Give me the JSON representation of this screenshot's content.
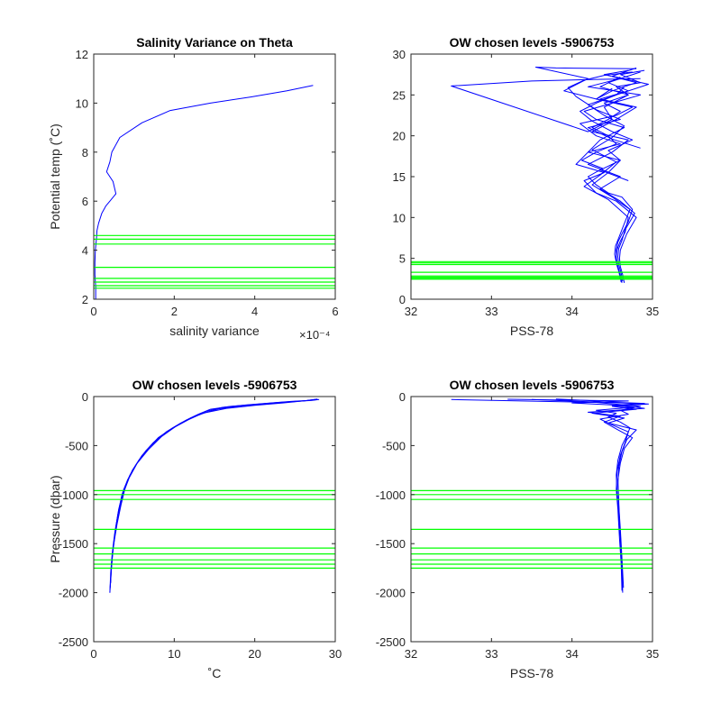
{
  "colors": {
    "profile": "#0000ff",
    "levels": "#00ff00",
    "axis": "#262626"
  },
  "chart_data": [
    {
      "id": "p1",
      "type": "line",
      "title": "Salinity Variance on Theta",
      "xlabel": "salinity variance",
      "ylabel": "Potential temp (˚C)",
      "xlim": [
        0,
        6
      ],
      "ylim": [
        2,
        12
      ],
      "xticks": [
        0,
        2,
        4,
        6
      ],
      "xtick_labels": [
        "0",
        "2",
        "4",
        "6"
      ],
      "x_exponent": "×10⁻⁴",
      "yticks": [
        2,
        4,
        6,
        8,
        10,
        12
      ],
      "ytick_labels": [
        "2",
        "4",
        "6",
        "8",
        "10",
        "12"
      ],
      "series": [
        {
          "x": [
            0.05,
            0.05,
            0.03,
            0.03,
            0.04,
            0.07,
            0.08,
            0.12,
            0.2,
            0.3,
            0.4,
            0.55,
            0.48,
            0.32,
            0.4,
            0.45,
            0.65,
            1.2,
            1.9,
            2.9,
            3.9,
            4.8,
            5.45
          ],
          "y": [
            2.0,
            2.5,
            3.0,
            3.5,
            4.0,
            4.5,
            4.8,
            5.1,
            5.5,
            5.8,
            6.0,
            6.3,
            6.8,
            7.2,
            7.6,
            8.0,
            8.6,
            9.2,
            9.7,
            10.0,
            10.25,
            10.5,
            10.72
          ]
        }
      ],
      "hlines": [
        2.45,
        2.55,
        2.7,
        2.85,
        3.3,
        4.25,
        4.45,
        4.6
      ]
    },
    {
      "id": "p2",
      "type": "line",
      "title": "OW chosen levels -5906753",
      "xlabel": "PSS-78",
      "ylabel": "",
      "xlim": [
        32,
        35
      ],
      "ylim": [
        0,
        30
      ],
      "xticks": [
        32,
        33,
        34,
        35
      ],
      "xtick_labels": [
        "32",
        "33",
        "34",
        "35"
      ],
      "yticks": [
        0,
        5,
        10,
        15,
        20,
        25,
        30
      ],
      "ytick_labels": [
        "0",
        "5",
        "10",
        "15",
        "20",
        "25",
        "30"
      ],
      "series": [
        {
          "x": [
            34.62,
            34.6,
            34.57,
            34.55,
            34.55,
            34.57,
            34.62,
            34.7,
            34.75,
            34.62,
            34.45,
            34.3,
            34.2,
            34.38,
            34.12,
            34.3,
            34.55,
            34.45,
            34.25,
            34.45,
            34.6,
            34.4,
            34.7,
            34.55,
            34.85,
            34.6,
            34.9
          ],
          "y": [
            2,
            3,
            4,
            5,
            6,
            7,
            8,
            9.5,
            11,
            12.5,
            13,
            14,
            15,
            16,
            17,
            18,
            19,
            20,
            21,
            22,
            23,
            24,
            25,
            26,
            26.5,
            27.5,
            28
          ]
        },
        {
          "x": [
            34.65,
            34.63,
            34.6,
            34.59,
            34.6,
            34.64,
            34.68,
            34.8,
            34.55,
            34.3,
            34.15,
            34.4,
            34.05,
            34.2,
            34.6,
            34.3,
            34.1,
            34.55,
            34.75,
            34.3,
            34.5,
            34.8,
            34.4,
            34.7
          ],
          "y": [
            2,
            3,
            4,
            5,
            6,
            7,
            8,
            10,
            12,
            13,
            14.5,
            15.5,
            16.5,
            18,
            19,
            20,
            21.5,
            22.5,
            23.5,
            24.5,
            25.5,
            26.5,
            27.5,
            28
          ]
        },
        {
          "x": [
            34.6,
            34.58,
            34.55,
            34.53,
            34.54,
            34.58,
            34.64,
            34.72,
            34.5,
            34.25,
            34.45,
            34.6,
            34.2,
            34.35,
            34.65,
            34.3,
            34.15,
            34.5,
            34.85,
            34.2,
            34.6
          ],
          "y": [
            2.5,
            3.5,
            4.5,
            5.5,
            6.5,
            7.5,
            9,
            11,
            12.5,
            14,
            15.5,
            17,
            18,
            19.5,
            21,
            22,
            23,
            24,
            25,
            26,
            27
          ]
        },
        {
          "x": [
            34.63,
            34.61,
            34.58,
            34.57,
            34.58,
            34.62,
            34.66,
            34.78,
            34.6,
            34.35,
            34.6,
            34.2,
            34.5,
            34.7,
            34.25,
            34.55,
            34.8,
            34.35,
            34.7,
            34.45,
            34.85
          ],
          "y": [
            2.2,
            3.2,
            4.2,
            5.2,
            6.2,
            7.2,
            8.5,
            10.5,
            12,
            13.5,
            15,
            16.5,
            18,
            19.5,
            20.5,
            22,
            23.5,
            24.5,
            25.5,
            26.5,
            27.8
          ]
        },
        {
          "x": [
            34.61,
            34.59,
            34.56,
            34.55,
            34.56,
            34.6,
            34.66,
            34.7,
            34.45,
            34.15,
            34.35,
            34.55,
            34.25,
            34.5,
            34.65,
            34.4,
            34.2,
            34.55,
            34.95,
            34.5,
            34.8
          ],
          "y": [
            2.1,
            3.1,
            4.1,
            5.1,
            6.1,
            7.1,
            8.2,
            10,
            12.2,
            13.8,
            15.2,
            16.8,
            18.3,
            19.8,
            21.2,
            22.5,
            23.8,
            25,
            26.3,
            27.3,
            28.3
          ]
        },
        {
          "x": [
            34.85,
            34.3,
            33.5,
            32.5,
            34.2,
            34.5,
            34.4,
            34.7,
            34.35,
            34.6
          ],
          "y": [
            27.0,
            26.9,
            26.7,
            26.1,
            20.5,
            22.0,
            23.5,
            25.0,
            26.0,
            27.2
          ]
        },
        {
          "x": [
            34.8,
            33.8,
            33.55,
            34.2,
            33.9,
            34.3,
            34.5
          ],
          "y": [
            28.2,
            28.3,
            28.4,
            27.0,
            25.5,
            24.5,
            25.8
          ]
        },
        {
          "x": [
            34.75,
            34.4,
            34.15,
            33.95,
            34.05,
            34.3,
            34.6,
            34.2,
            34.5,
            34.85
          ],
          "y": [
            27.8,
            27.4,
            26.8,
            25.9,
            24.8,
            23.2,
            22.0,
            21.0,
            19.6,
            18.5
          ]
        },
        {
          "x": [
            34.65,
            34.55,
            34.3,
            34.1,
            34.25,
            34.5,
            34.75,
            34.45,
            34.6,
            34.35,
            34.7
          ],
          "y": [
            26.0,
            25.0,
            24.0,
            23.0,
            21.8,
            20.5,
            19.5,
            18.2,
            17.0,
            15.8,
            14.5
          ]
        }
      ],
      "hlines": [
        2.45,
        2.55,
        2.7,
        2.85,
        3.3,
        4.25,
        4.45,
        4.6
      ]
    },
    {
      "id": "p3",
      "type": "line",
      "title": "OW chosen levels -5906753",
      "xlabel": "˚C",
      "ylabel": "Pressure (dbar)",
      "xlim": [
        0,
        30
      ],
      "ylim": [
        -2500,
        0
      ],
      "xticks": [
        0,
        10,
        20,
        30
      ],
      "xtick_labels": [
        "0",
        "10",
        "20",
        "30"
      ],
      "yticks": [
        -2500,
        -2000,
        -1500,
        -1000,
        -500,
        0
      ],
      "ytick_labels": [
        "-2500",
        "-2000",
        "-1500",
        "-1000",
        "-500",
        "0"
      ],
      "series": [
        {
          "x": [
            2.0,
            2.1,
            2.3,
            2.6,
            3.0,
            3.5,
            4.2,
            5.2,
            6.5,
            8.0,
            9.8,
            11.5,
            13.0,
            14.5,
            17.0,
            20.0,
            23.0,
            25.0,
            27.0,
            28.0
          ],
          "y": [
            -2000,
            -1800,
            -1600,
            -1400,
            -1200,
            -1000,
            -850,
            -700,
            -550,
            -420,
            -320,
            -240,
            -180,
            -130,
            -100,
            -80,
            -60,
            -50,
            -40,
            -30
          ]
        },
        {
          "x": [
            2.1,
            2.2,
            2.5,
            2.9,
            3.4,
            4.0,
            4.8,
            6.0,
            7.4,
            9.0,
            10.8,
            12.5,
            14.0,
            16.0,
            19.0,
            22.0,
            24.5,
            26.5,
            27.8
          ],
          "y": [
            -1900,
            -1700,
            -1500,
            -1300,
            -1100,
            -900,
            -750,
            -600,
            -470,
            -360,
            -270,
            -200,
            -150,
            -110,
            -85,
            -65,
            -50,
            -40,
            -25
          ]
        },
        {
          "x": [
            2.05,
            2.2,
            2.4,
            2.7,
            3.1,
            3.7,
            4.5,
            5.6,
            7.0,
            8.6,
            10.3,
            12.0,
            13.8,
            16.5,
            20.0,
            23.5,
            26.0,
            27.5
          ],
          "y": [
            -1950,
            -1750,
            -1550,
            -1350,
            -1150,
            -950,
            -800,
            -650,
            -510,
            -390,
            -300,
            -220,
            -165,
            -120,
            -90,
            -65,
            -45,
            -30
          ]
        },
        {
          "x": [
            2.0,
            2.15,
            2.35,
            2.65,
            3.05,
            3.6,
            4.4,
            5.4,
            6.8,
            8.4,
            10.1,
            11.8,
            13.4,
            15.5,
            18.5,
            21.5,
            24.0,
            26.0,
            27.6
          ],
          "y": [
            -2000,
            -1800,
            -1600,
            -1400,
            -1200,
            -1000,
            -830,
            -680,
            -540,
            -410,
            -310,
            -235,
            -175,
            -125,
            -95,
            -75,
            -58,
            -45,
            -32
          ]
        }
      ],
      "hlines": [
        -960,
        -1000,
        -1050,
        -1355,
        -1545,
        -1605,
        -1665,
        -1710,
        -1750
      ]
    },
    {
      "id": "p4",
      "type": "line",
      "title": "OW chosen levels -5906753",
      "xlabel": "PSS-78",
      "ylabel": "",
      "xlim": [
        32,
        35
      ],
      "ylim": [
        -2500,
        0
      ],
      "xticks": [
        32,
        33,
        34,
        35
      ],
      "xtick_labels": [
        "32",
        "33",
        "34",
        "35"
      ],
      "yticks": [
        -2500,
        -2000,
        -1500,
        -1000,
        -500,
        0
      ],
      "ytick_labels": [
        "-2500",
        "-2000",
        "-1500",
        "-1000",
        "-500",
        "0"
      ],
      "series": [
        {
          "x": [
            34.63,
            34.62,
            34.6,
            34.58,
            34.56,
            34.55,
            34.57,
            34.62,
            34.68,
            34.72,
            34.6,
            34.45,
            34.55,
            34.3,
            34.75,
            34.5,
            34.9,
            34.4,
            34.2,
            33.8
          ],
          "y": [
            -2000,
            -1700,
            -1400,
            -1200,
            -1000,
            -800,
            -650,
            -500,
            -400,
            -320,
            -260,
            -210,
            -170,
            -140,
            -110,
            -90,
            -70,
            -55,
            -40,
            -25
          ]
        },
        {
          "x": [
            34.64,
            34.62,
            34.6,
            34.58,
            34.57,
            34.58,
            34.62,
            34.68,
            34.8,
            34.45,
            34.65,
            34.25,
            34.8,
            34.5,
            34.95,
            34.1,
            33.5
          ],
          "y": [
            -1950,
            -1650,
            -1350,
            -1100,
            -900,
            -720,
            -560,
            -440,
            -340,
            -270,
            -220,
            -170,
            -130,
            -100,
            -75,
            -50,
            -30
          ]
        },
        {
          "x": [
            34.62,
            34.61,
            34.59,
            34.57,
            34.55,
            34.56,
            34.6,
            34.66,
            34.7,
            34.5,
            34.35,
            34.7,
            34.6,
            34.85,
            34.3,
            32.5
          ],
          "y": [
            -1980,
            -1700,
            -1450,
            -1150,
            -950,
            -760,
            -600,
            -470,
            -360,
            -290,
            -230,
            -180,
            -140,
            -100,
            -60,
            -30
          ]
        },
        {
          "x": [
            34.63,
            34.61,
            34.59,
            34.58,
            34.57,
            34.6,
            34.65,
            34.75,
            34.55,
            34.4,
            34.6,
            34.2,
            34.9,
            34.6,
            34.0,
            34.7,
            33.2
          ],
          "y": [
            -1900,
            -1600,
            -1300,
            -1050,
            -850,
            -680,
            -530,
            -420,
            -330,
            -260,
            -200,
            -160,
            -120,
            -90,
            -65,
            -45,
            -28
          ]
        }
      ],
      "hlines": [
        -960,
        -1000,
        -1050,
        -1355,
        -1545,
        -1605,
        -1665,
        -1710,
        -1750
      ]
    }
  ]
}
